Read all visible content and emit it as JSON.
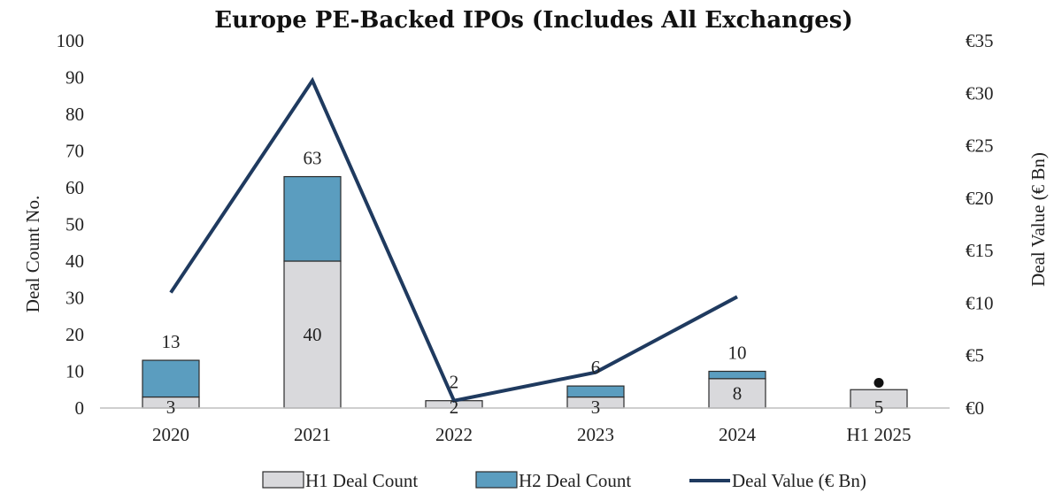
{
  "chart_data": {
    "type": "bar",
    "title": "Europe PE-Backed IPOs (Includes All Exchanges)",
    "categories": [
      "2020",
      "2021",
      "2022",
      "2023",
      "2024",
      "H1 2025"
    ],
    "ylabel": "Deal Count No.",
    "y2label": "Deal Value (€  Bn)",
    "ylim": [
      0,
      100
    ],
    "y2lim": [
      0,
      35
    ],
    "y_ticks": [
      "0",
      "10",
      "20",
      "30",
      "40",
      "50",
      "60",
      "70",
      "80",
      "90",
      "100"
    ],
    "y2_ticks": [
      "€0",
      "€5",
      "€10",
      "€15",
      "€20",
      "€25",
      "€30",
      "€35"
    ],
    "stacked": true,
    "series": [
      {
        "name": "H1 Deal Count",
        "type": "bar",
        "color": "#d9d9dc",
        "values": [
          3,
          40,
          2,
          3,
          8,
          5
        ],
        "labels": [
          "3",
          "40",
          "2",
          "3",
          "8",
          "5"
        ]
      },
      {
        "name": "H2 Deal Count",
        "type": "bar",
        "color": "#5b9dbf",
        "values": [
          10,
          23,
          0,
          3,
          2,
          null
        ]
      },
      {
        "name": "Deal Value (€  Bn)",
        "type": "line",
        "axis": "right",
        "color": "#1f3a5f",
        "values": [
          11,
          31.2,
          0.7,
          3.4,
          10.6,
          2.4
        ]
      }
    ],
    "totals": [
      13,
      63,
      2,
      6,
      10,
      null
    ],
    "total_labels": [
      "13",
      "63",
      "2",
      "6",
      "10",
      ""
    ],
    "grid": false,
    "legend_position": "bottom"
  }
}
